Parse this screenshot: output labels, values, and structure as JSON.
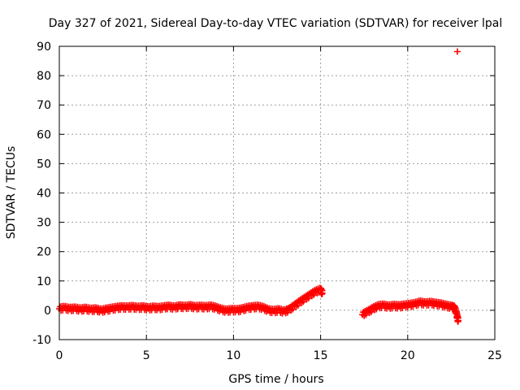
{
  "chart_data": {
    "type": "scatter",
    "title": "Day 327 of 2021, Sidereal Day-to-day VTEC variation (SDTVAR) for receiver lpal",
    "xlabel": "GPS time / hours",
    "ylabel": "SDTVAR / TECUs",
    "xlim": [
      0,
      25
    ],
    "ylim": [
      -10,
      90
    ],
    "xticks": [
      0,
      5,
      10,
      15,
      20,
      25
    ],
    "yticks": [
      -10,
      0,
      10,
      20,
      30,
      40,
      50,
      60,
      70,
      80,
      90
    ],
    "grid": true,
    "marker": "plus",
    "series": [
      {
        "name": "SDTVAR",
        "color": "#ff0000",
        "points": [
          [
            0.0,
            0.5
          ],
          [
            0.3,
            0.8
          ],
          [
            0.6,
            0.4
          ],
          [
            0.9,
            0.6
          ],
          [
            1.2,
            0.2
          ],
          [
            1.5,
            0.5
          ],
          [
            1.8,
            0.1
          ],
          [
            2.1,
            0.3
          ],
          [
            2.4,
            -0.2
          ],
          [
            2.7,
            0.2
          ],
          [
            3.0,
            0.5
          ],
          [
            3.3,
            0.8
          ],
          [
            3.6,
            1.0
          ],
          [
            3.9,
            0.9
          ],
          [
            4.2,
            1.1
          ],
          [
            4.5,
            0.8
          ],
          [
            4.8,
            1.0
          ],
          [
            5.1,
            0.6
          ],
          [
            5.4,
            0.9
          ],
          [
            5.7,
            0.7
          ],
          [
            6.0,
            1.0
          ],
          [
            6.3,
            1.2
          ],
          [
            6.6,
            0.9
          ],
          [
            6.9,
            1.3
          ],
          [
            7.2,
            1.1
          ],
          [
            7.5,
            1.4
          ],
          [
            7.8,
            1.0
          ],
          [
            8.1,
            1.2
          ],
          [
            8.4,
            1.0
          ],
          [
            8.7,
            1.3
          ],
          [
            9.0,
            0.8
          ],
          [
            9.3,
            0.2
          ],
          [
            9.6,
            -0.2
          ],
          [
            9.9,
            0.1
          ],
          [
            10.2,
            0.0
          ],
          [
            10.5,
            0.3
          ],
          [
            10.8,
            0.8
          ],
          [
            11.1,
            1.0
          ],
          [
            11.4,
            1.2
          ],
          [
            11.7,
            0.8
          ],
          [
            12.0,
            0.0
          ],
          [
            12.3,
            -0.3
          ],
          [
            12.6,
            0.0
          ],
          [
            12.9,
            -0.5
          ],
          [
            13.2,
            0.2
          ],
          [
            13.5,
            1.5
          ],
          [
            13.8,
            2.8
          ],
          [
            14.1,
            4.0
          ],
          [
            14.4,
            5.2
          ],
          [
            14.7,
            6.3
          ],
          [
            15.0,
            7.0
          ],
          [
            15.1,
            5.8
          ],
          [
            17.4,
            -1.5
          ],
          [
            17.7,
            -0.5
          ],
          [
            18.0,
            0.5
          ],
          [
            18.3,
            1.4
          ],
          [
            18.6,
            1.6
          ],
          [
            18.9,
            1.2
          ],
          [
            19.2,
            1.5
          ],
          [
            19.5,
            1.3
          ],
          [
            19.8,
            1.6
          ],
          [
            20.1,
            1.8
          ],
          [
            20.4,
            2.1
          ],
          [
            20.7,
            2.6
          ],
          [
            21.0,
            2.3
          ],
          [
            21.3,
            2.5
          ],
          [
            21.6,
            2.2
          ],
          [
            21.9,
            2.0
          ],
          [
            22.2,
            1.5
          ],
          [
            22.5,
            1.2
          ],
          [
            22.7,
            0.8
          ],
          [
            22.8,
            -1.0
          ],
          [
            22.85,
            -2.5
          ],
          [
            22.9,
            -3.5
          ],
          [
            22.85,
            88.2
          ]
        ]
      }
    ]
  }
}
